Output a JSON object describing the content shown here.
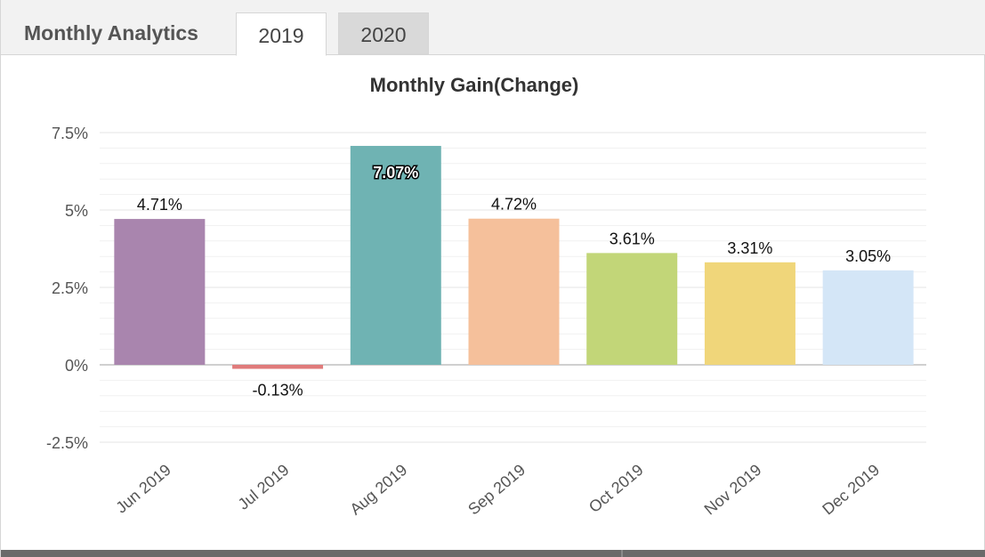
{
  "header": {
    "title": "Monthly Analytics",
    "tabs": [
      {
        "label": "2019",
        "active": true
      },
      {
        "label": "2020",
        "active": false
      }
    ]
  },
  "chart_data": {
    "type": "bar",
    "title": "Monthly Gain(Change)",
    "xlabel": "",
    "ylabel": "",
    "categories": [
      "Jun 2019",
      "Jul 2019",
      "Aug 2019",
      "Sep 2019",
      "Oct 2019",
      "Nov 2019",
      "Dec 2019"
    ],
    "values": [
      4.71,
      -0.13,
      7.07,
      4.72,
      3.61,
      3.31,
      3.05
    ],
    "value_labels": [
      "4.71%",
      "-0.13%",
      "7.07%",
      "4.72%",
      "3.61%",
      "3.31%",
      "3.05%"
    ],
    "colors": [
      "#a985ae",
      "#e07b7b",
      "#6fb3b3",
      "#f5c09b",
      "#c2d678",
      "#f0d67a",
      "#d4e6f7"
    ],
    "yticks": [
      -2.5,
      0,
      2.5,
      5,
      7.5
    ],
    "ytick_labels": [
      "-2.5%",
      "0%",
      "2.5%",
      "5%",
      "7.5%"
    ],
    "ylim": [
      -2.5,
      7.5
    ],
    "grid": true
  }
}
